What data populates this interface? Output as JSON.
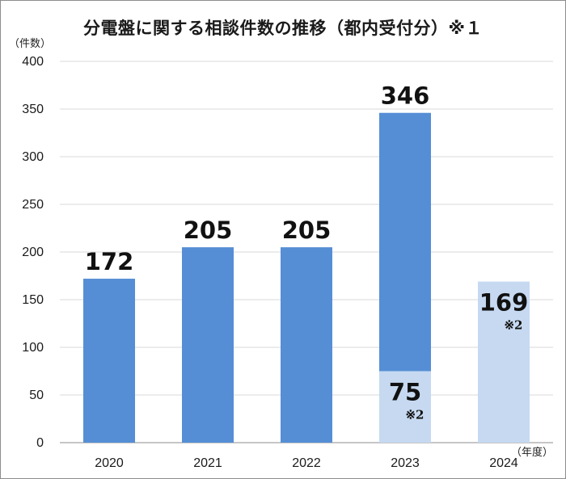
{
  "chart_data": {
    "type": "bar",
    "title": "分電盤に関する相談件数の推移（都内受付分）※１",
    "ylabel": "（件数）",
    "xlabel": "（年度）",
    "ylim": [
      0,
      400
    ],
    "yticks": [
      0,
      50,
      100,
      150,
      200,
      250,
      300,
      350,
      400
    ],
    "grid": true,
    "categories": [
      "2020",
      "2021",
      "2022",
      "2023",
      "2024"
    ],
    "bars": [
      {
        "category": "2020",
        "segments": [
          {
            "value": 172,
            "label": "172",
            "color": "#558ed5"
          }
        ]
      },
      {
        "category": "2021",
        "segments": [
          {
            "value": 205,
            "label": "205",
            "color": "#558ed5"
          }
        ]
      },
      {
        "category": "2022",
        "segments": [
          {
            "value": 205,
            "label": "205",
            "color": "#558ed5"
          }
        ]
      },
      {
        "category": "2023",
        "segments": [
          {
            "value": 346,
            "label": "346",
            "color": "#558ed5"
          },
          {
            "value": 75,
            "label": "75",
            "note": "※2",
            "color": "#c6d9f1"
          }
        ]
      },
      {
        "category": "2024",
        "segments": [
          {
            "value": 169,
            "label": "169",
            "note": "※2",
            "color": "#c6d9f1"
          }
        ]
      }
    ]
  }
}
